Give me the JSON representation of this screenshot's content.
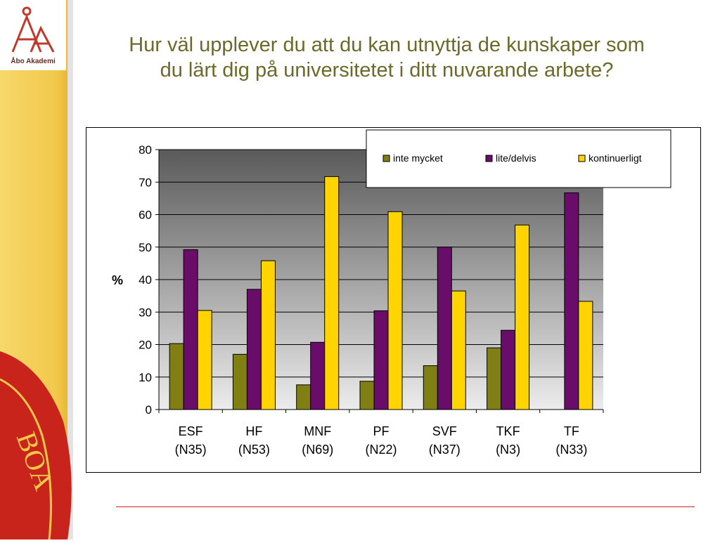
{
  "slide": {
    "title_line1": "Hur väl upplever du att du kan utnyttja de kunskaper som",
    "title_line2": "du lärt dig på universitetet i ditt nuvarande arbete?",
    "logo_text": "Åbo Akademi"
  },
  "colors": {
    "title": "#6b6a2a",
    "inte_mycket": "#7f7f14",
    "lite_delvis": "#6a0d6a",
    "kontinuerligt": "#ffd400",
    "rule": "#cc2222",
    "sidebar": "#f2c84a"
  },
  "chart_data": {
    "type": "bar",
    "title": "",
    "xlabel": "",
    "ylabel": "%",
    "ylim": [
      0,
      80
    ],
    "yticks": [
      0,
      10,
      20,
      30,
      40,
      50,
      60,
      70,
      80
    ],
    "grid": true,
    "legend_position": "top-right",
    "categories": [
      [
        "ESF",
        "(N35)"
      ],
      [
        "HF",
        "(N53)"
      ],
      [
        "MNF",
        "(N69)"
      ],
      [
        "PF",
        "(N22)"
      ],
      [
        "SVF",
        "(N37)"
      ],
      [
        "TKF",
        "(N3)"
      ],
      [
        "TF",
        "(N33)"
      ]
    ],
    "series": [
      {
        "name": "inte mycket",
        "values": [
          20.3,
          17,
          7.6,
          8.7,
          13.5,
          19,
          0
        ]
      },
      {
        "name": "lite/delvis",
        "values": [
          49.2,
          37,
          20.7,
          30.4,
          50,
          24.4,
          66.7
        ]
      },
      {
        "name": "kontinuerligt",
        "values": [
          30.5,
          45.8,
          71.7,
          60.9,
          36.5,
          56.8,
          33.3
        ]
      }
    ]
  }
}
